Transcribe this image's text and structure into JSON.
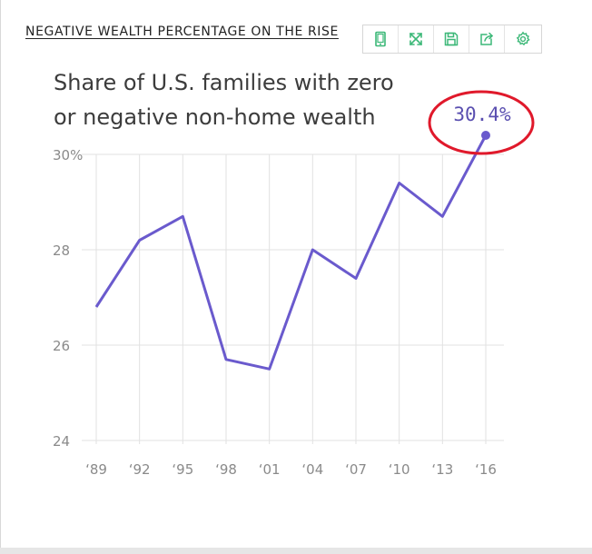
{
  "headline": "NEGATIVE WEALTH PERCENTAGE ON THE RISE",
  "toolbar": [
    {
      "icon": "tablet-icon",
      "name": "mobile-view-button"
    },
    {
      "icon": "expand-icon",
      "name": "fullscreen-button"
    },
    {
      "icon": "save-icon",
      "name": "save-button"
    },
    {
      "icon": "share-icon",
      "name": "share-button"
    },
    {
      "icon": "gear-icon",
      "name": "settings-button"
    }
  ],
  "colors": {
    "line": "#6a5acd",
    "annotation_circle": "#e0192b",
    "toolbar_icon": "#3cb878"
  },
  "chart_data": {
    "type": "line",
    "title_lines": [
      "Share of U.S. families with zero",
      "or negative non-home wealth"
    ],
    "categories": [
      "‘89",
      "‘92",
      "‘95",
      "‘98",
      "‘01",
      "‘04",
      "‘07",
      "‘10",
      "‘13",
      "‘16"
    ],
    "values": [
      26.8,
      28.2,
      28.7,
      25.7,
      25.5,
      28.0,
      27.4,
      29.4,
      28.7,
      30.4
    ],
    "ylim": [
      24,
      30
    ],
    "yticks": [
      {
        "value": 30,
        "label": "30%"
      },
      {
        "value": 28,
        "label": "28"
      },
      {
        "value": 26,
        "label": "26"
      },
      {
        "value": 24,
        "label": "24"
      }
    ],
    "annotation": {
      "category": "‘16",
      "label": "30.4%"
    },
    "grid": true
  }
}
